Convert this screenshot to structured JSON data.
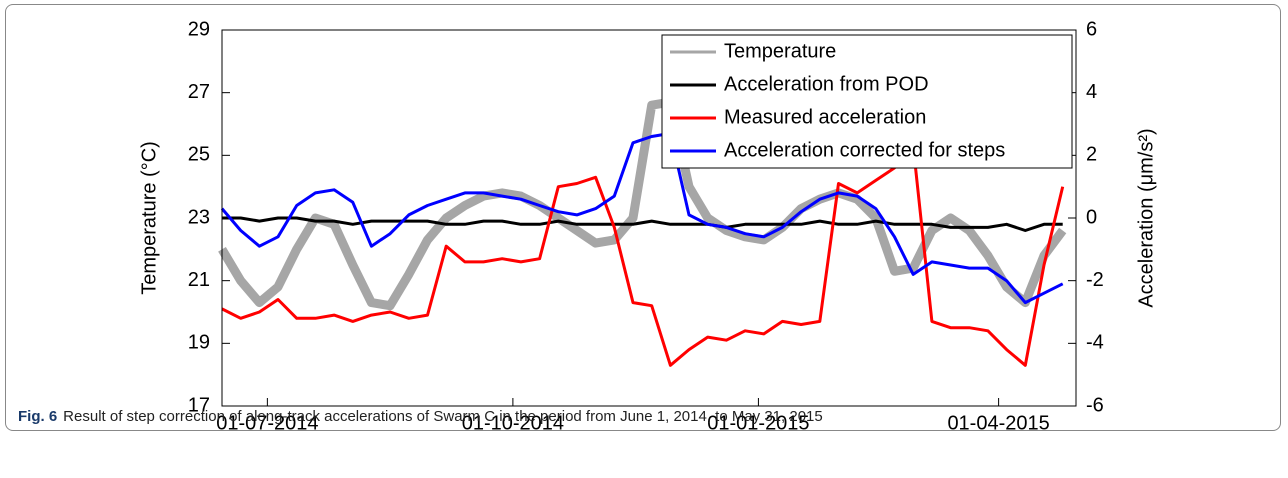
{
  "chart_data": {
    "type": "line",
    "x": [
      "2014-06-14",
      "2014-06-21",
      "2014-06-28",
      "2014-07-05",
      "2014-07-12",
      "2014-07-19",
      "2014-07-26",
      "2014-08-02",
      "2014-08-09",
      "2014-08-16",
      "2014-08-23",
      "2014-08-30",
      "2014-09-06",
      "2014-09-13",
      "2014-09-20",
      "2014-09-27",
      "2014-10-04",
      "2014-10-11",
      "2014-10-18",
      "2014-10-25",
      "2014-11-01",
      "2014-11-08",
      "2014-11-15",
      "2014-11-22",
      "2014-11-29",
      "2014-12-06",
      "2014-12-13",
      "2014-12-20",
      "2014-12-27",
      "2015-01-03",
      "2015-01-10",
      "2015-01-17",
      "2015-01-24",
      "2015-01-31",
      "2015-02-07",
      "2015-02-14",
      "2015-02-21",
      "2015-02-28",
      "2015-03-07",
      "2015-03-14",
      "2015-03-21",
      "2015-03-28",
      "2015-04-04",
      "2015-04-11",
      "2015-04-18",
      "2015-04-25"
    ],
    "series": [
      {
        "name": "Temperature",
        "color": "#a6a6a6",
        "axis": "y",
        "values": [
          22.0,
          21.0,
          20.3,
          20.8,
          22.0,
          23.0,
          22.8,
          21.5,
          20.3,
          20.2,
          21.2,
          22.3,
          23.0,
          23.4,
          23.7,
          23.8,
          23.7,
          23.4,
          23.0,
          22.6,
          22.2,
          22.3,
          23.0,
          26.6,
          26.7,
          24.0,
          23.0,
          22.6,
          22.4,
          22.3,
          22.7,
          23.3,
          23.6,
          23.8,
          23.6,
          23.0,
          21.3,
          21.4,
          22.6,
          23.0,
          22.6,
          21.8,
          20.8,
          20.3,
          21.8,
          22.6
        ]
      },
      {
        "name": "Acceleration from POD",
        "color": "#000000",
        "axis": "y2",
        "values": [
          0.0,
          0.0,
          -0.1,
          0.0,
          0.0,
          -0.1,
          -0.1,
          -0.2,
          -0.1,
          -0.1,
          -0.1,
          -0.1,
          -0.2,
          -0.2,
          -0.1,
          -0.1,
          -0.2,
          -0.2,
          -0.1,
          -0.2,
          -0.2,
          -0.2,
          -0.2,
          -0.1,
          -0.2,
          -0.2,
          -0.2,
          -0.3,
          -0.2,
          -0.2,
          -0.2,
          -0.2,
          -0.1,
          -0.2,
          -0.2,
          -0.1,
          -0.2,
          -0.2,
          -0.2,
          -0.3,
          -0.3,
          -0.3,
          -0.2,
          -0.4,
          -0.2,
          -0.2
        ]
      },
      {
        "name": "Measured acceleration",
        "color": "#ff0000",
        "axis": "y2",
        "values": [
          -2.9,
          -3.2,
          -3.0,
          -2.6,
          -3.2,
          -3.2,
          -3.1,
          -3.3,
          -3.1,
          -3.0,
          -3.2,
          -3.1,
          -0.9,
          -1.4,
          -1.4,
          -1.3,
          -1.4,
          -1.3,
          1.0,
          1.1,
          1.3,
          -0.3,
          -2.7,
          -2.8,
          -4.7,
          -4.2,
          -3.8,
          -3.9,
          -3.6,
          -3.7,
          -3.3,
          -3.4,
          -3.3,
          1.1,
          0.8,
          1.2,
          1.6,
          2.3,
          -3.3,
          -3.5,
          -3.5,
          -3.6,
          -4.2,
          -4.7,
          -1.5,
          1.0
        ]
      },
      {
        "name": "Acceleration corrected for steps",
        "color": "#0000ff",
        "axis": "y2",
        "values": [
          0.3,
          -0.4,
          -0.9,
          -0.6,
          0.4,
          0.8,
          0.9,
          0.5,
          -0.9,
          -0.5,
          0.1,
          0.4,
          0.6,
          0.8,
          0.8,
          0.7,
          0.6,
          0.4,
          0.2,
          0.1,
          0.3,
          0.7,
          2.4,
          2.6,
          2.7,
          0.1,
          -0.2,
          -0.3,
          -0.5,
          -0.6,
          -0.3,
          0.2,
          0.6,
          0.8,
          0.7,
          0.3,
          -0.6,
          -1.8,
          -1.4,
          -1.5,
          -1.6,
          -1.6,
          -2.0,
          -2.7,
          -2.4,
          -2.1
        ]
      }
    ],
    "xlim": [
      "2014-06-14",
      "2015-04-30"
    ],
    "xticks": [
      {
        "value": "2014-07-01",
        "label": "01-07-2014"
      },
      {
        "value": "2014-10-01",
        "label": "01-10-2014"
      },
      {
        "value": "2015-01-01",
        "label": "01-01-2015"
      },
      {
        "value": "2015-04-01",
        "label": "01-04-2015"
      }
    ],
    "ylim": [
      17,
      29
    ],
    "yticks": [
      17,
      19,
      21,
      23,
      25,
      27,
      29
    ],
    "y2lim": [
      -6,
      6
    ],
    "y2ticks": [
      -6,
      -4,
      -2,
      0,
      2,
      4,
      6
    ],
    "ylabel": "Temperature (°C)",
    "y2label": "Acceleration (μm/s²)",
    "legend": "upper right"
  },
  "caption": {
    "label": "Fig. 6",
    "text": "Result of step correction of along-track accelerations of Swarm C in the period from June 1, 2014, to May 31, 2015"
  }
}
